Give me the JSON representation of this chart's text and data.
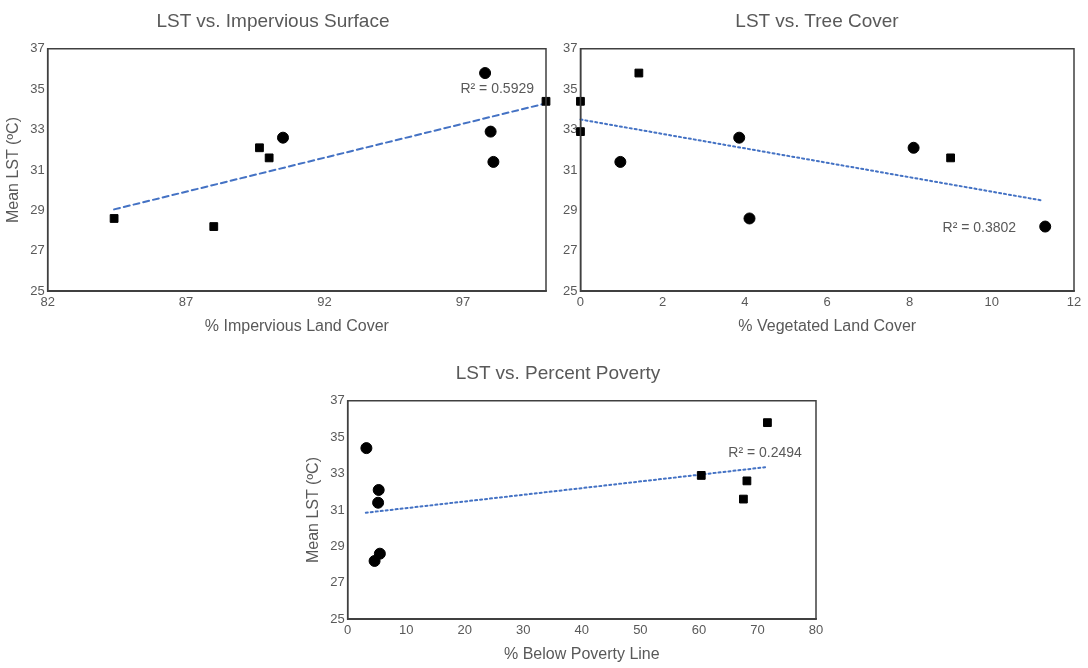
{
  "chart_data": [
    {
      "type": "scatter",
      "title": "LST vs. Impervious Surface",
      "xlabel": "% Impervious Land Cover",
      "ylabel": "Mean LST (ºC)",
      "xlim": [
        82,
        100
      ],
      "xticks": [
        82,
        87,
        92,
        97
      ],
      "ylim": [
        25,
        37
      ],
      "yticks": [
        25,
        27,
        29,
        31,
        33,
        35,
        37
      ],
      "grid": false,
      "legend": false,
      "annotations": [
        "R² = 0.5929"
      ],
      "series": [
        {
          "type": "scatter",
          "marker": "square",
          "color": "#000000",
          "x": [
            84.4,
            88.0,
            89.65,
            90.0,
            100
          ],
          "values": [
            28.6,
            28.2,
            32.1,
            31.6,
            34.4
          ]
        },
        {
          "type": "scatter",
          "marker": "circle",
          "color": "#000000",
          "x": [
            90.5,
            97.8,
            98.0,
            98.1
          ],
          "values": [
            32.6,
            35.8,
            32.9,
            31.4
          ]
        },
        {
          "type": "line",
          "marker": "none",
          "line_style": "dashed",
          "color": "#4472c4",
          "x": [
            84.4,
            100
          ],
          "values": [
            29.05,
            34.3
          ]
        }
      ]
    },
    {
      "type": "scatter",
      "title": "LST vs. Tree Cover",
      "xlabel": "% Vegetated Land Cover",
      "xlim": [
        0,
        12
      ],
      "xticks": [
        0,
        2,
        4,
        6,
        8,
        10,
        12
      ],
      "ylim": [
        25,
        37
      ],
      "yticks": [
        25,
        27,
        29,
        31,
        33,
        35,
        37
      ],
      "grid": false,
      "legend": false,
      "annotations": [
        "R² = 0.3802"
      ],
      "series": [
        {
          "type": "scatter",
          "marker": "square",
          "color": "#000000",
          "x": [
            0,
            0,
            1.42,
            9.0
          ],
          "values": [
            34.4,
            32.9,
            35.8,
            31.6
          ]
        },
        {
          "type": "scatter",
          "marker": "circle",
          "color": "#000000",
          "x": [
            0.97,
            3.86,
            4.11,
            8.1,
            11.3
          ],
          "values": [
            31.4,
            32.6,
            28.6,
            32.1,
            28.2
          ]
        },
        {
          "type": "line",
          "marker": "none",
          "line_style": "dotted",
          "color": "#4472c4",
          "x": [
            0,
            11.2
          ],
          "values": [
            33.5,
            29.5
          ]
        }
      ]
    },
    {
      "type": "scatter",
      "title": "LST vs. Percent Poverty",
      "xlabel": "% Below Poverty Line",
      "ylabel": "Mean LST (ºC)",
      "xlim": [
        0,
        80
      ],
      "xticks": [
        0,
        10,
        20,
        30,
        40,
        50,
        60,
        70,
        80
      ],
      "ylim": [
        25,
        37
      ],
      "yticks": [
        25,
        27,
        29,
        31,
        33,
        35,
        37
      ],
      "grid": false,
      "legend": false,
      "annotations": [
        "R² = 0.2494"
      ],
      "series": [
        {
          "type": "scatter",
          "marker": "circle",
          "color": "#000000",
          "x": [
            3.2,
            5.3,
            5.2,
            5.5,
            4.6
          ],
          "values": [
            34.4,
            32.1,
            31.4,
            28.6,
            28.2
          ]
        },
        {
          "type": "scatter",
          "marker": "square",
          "color": "#000000",
          "x": [
            60.4,
            68.2,
            67.6,
            71.7
          ],
          "values": [
            32.9,
            32.6,
            31.6,
            35.8
          ]
        },
        {
          "type": "line",
          "marker": "none",
          "line_style": "dotted",
          "color": "#4472c4",
          "x": [
            3.1,
            71.3
          ],
          "values": [
            30.85,
            33.35
          ]
        }
      ]
    }
  ]
}
